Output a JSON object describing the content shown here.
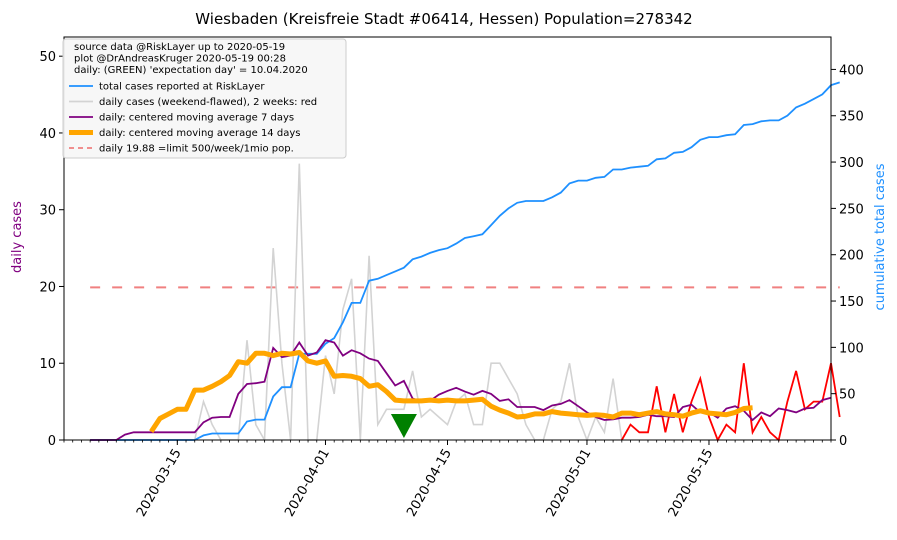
{
  "chart_data": {
    "type": "line",
    "title": "Wiesbaden (Kreisfreie Stadt #06414, Hessen) Population=278342",
    "ylabel_left": "daily cases",
    "ylabel_right": "cumulative total cases",
    "colors": {
      "total": "#1e90ff",
      "daily_raw": "#d3d3d3",
      "daily_recent": "#ff0000",
      "ma7": "#800080",
      "ma14": "#ffa500",
      "limit": "#f08080",
      "expectation_marker": "#008000",
      "ylabel_left": "#800080",
      "ylabel_right": "#1e90ff"
    },
    "xlim": [
      "2020-03-02",
      "2020-05-29"
    ],
    "ylim_left": [
      0,
      52.5
    ],
    "ylim_right": [
      0,
      435
    ],
    "x_ticks": [
      "2020-03-15",
      "2020-04-01",
      "2020-04-15",
      "2020-05-01",
      "2020-05-15"
    ],
    "y_ticks_left": [
      0,
      10,
      20,
      30,
      40,
      50
    ],
    "y_ticks_right": [
      0,
      50,
      100,
      150,
      200,
      250,
      300,
      350,
      400
    ],
    "legend": {
      "position": "top-left",
      "header": [
        "source data @RiskLayer up to 2020-05-19",
        "plot @DrAndreasKruger 2020-05-19 00:28",
        "daily: (GREEN) 'expectation day' = 10.04.2020"
      ],
      "entries": [
        "total cases reported at RiskLayer",
        "daily cases (weekend-flawed), 2 weeks: red",
        "daily: centered moving average 7 days",
        "daily: centered moving average 14 days",
        "daily 19.88 =limit 500/week/1mio pop."
      ]
    },
    "limit_value": 19.88,
    "expectation_day": "2020-04-10",
    "dates_start": "2020-03-05",
    "cumulative_total": [
      0,
      0,
      0,
      0,
      0,
      0,
      0,
      0,
      0,
      0,
      0,
      0,
      0,
      5,
      7,
      7,
      7,
      7,
      20,
      22,
      22,
      47,
      57,
      57,
      93,
      93,
      93,
      104,
      110,
      127,
      148,
      148,
      172,
      174,
      178,
      182,
      186,
      195,
      198,
      202,
      205,
      207,
      212,
      218,
      220,
      222,
      232,
      242,
      250,
      256,
      258,
      258,
      258,
      262,
      267,
      277,
      280,
      280,
      283,
      284,
      292,
      292,
      294,
      295,
      296,
      303,
      304,
      310,
      311,
      316,
      324,
      327,
      327,
      329,
      330,
      340,
      341,
      344,
      345,
      345,
      350,
      359,
      363,
      368,
      373,
      383,
      386
    ],
    "daily_cases": [
      0,
      0,
      0,
      0,
      0,
      0,
      0,
      0,
      0,
      0,
      0,
      0,
      0,
      5,
      2,
      0,
      0,
      0,
      13,
      2,
      0,
      25,
      10,
      0,
      36,
      0,
      0,
      11,
      6,
      17,
      21,
      0,
      24,
      2,
      4,
      4,
      4,
      9,
      3,
      4,
      3,
      2,
      5,
      6,
      2,
      2,
      10,
      10,
      8,
      6,
      2,
      0,
      0,
      4,
      5,
      10,
      3,
      0,
      3,
      1,
      8,
      0,
      2,
      1,
      1,
      7,
      1,
      6,
      1,
      5,
      8,
      3,
      0,
      2,
      1,
      10,
      1,
      3,
      1,
      0,
      5,
      9,
      4,
      5,
      5,
      10,
      3
    ],
    "daily_recent_start": "2020-05-05",
    "ma7": [
      0,
      0,
      0,
      0,
      0.7,
      1.0,
      1.0,
      1.0,
      1.0,
      1.0,
      1.0,
      1.0,
      1.0,
      2.3,
      2.9,
      3.0,
      3.0,
      6.0,
      7.3,
      7.4,
      7.6,
      12.0,
      10.8,
      11.0,
      12.7,
      11.0,
      11.4,
      13.0,
      12.7,
      11.0,
      11.7,
      11.3,
      10.6,
      10.3,
      8.7,
      7.1,
      7.7,
      5.4,
      5.0,
      5.1,
      5.9,
      6.4,
      6.8,
      6.3,
      5.9,
      6.4,
      6.0,
      5.1,
      5.3,
      4.3,
      4.3,
      4.3,
      3.9,
      4.5,
      4.7,
      5.2,
      4.4,
      3.6,
      3.0,
      2.6,
      2.7,
      2.9,
      2.9,
      3.0,
      3.3,
      3.1,
      3.1,
      3.0,
      4.3,
      4.6,
      3.6,
      3.6,
      2.9,
      4.1,
      4.4,
      3.8,
      2.6,
      3.6,
      3.1,
      4.1,
      3.9,
      3.6,
      4.1,
      4.2,
      5.2,
      5.5
    ],
    "ma7_start": "2020-03-05",
    "ma14_start": "2020-03-12",
    "ma14": [
      1.1,
      2.8,
      3.4,
      4.0,
      4.0,
      6.5,
      6.5,
      7.0,
      7.6,
      8.4,
      10.2,
      10.0,
      11.3,
      11.3,
      11.0,
      11.3,
      11.2,
      11.4,
      10.3,
      10.0,
      10.3,
      8.3,
      8.4,
      8.3,
      8.0,
      7.0,
      7.2,
      6.3,
      5.2,
      5.1,
      5.1,
      5.1,
      5.2,
      5.1,
      5.2,
      5.1,
      5.1,
      5.2,
      5.3,
      4.4,
      3.9,
      3.5,
      3.0,
      3.1,
      3.4,
      3.4,
      3.7,
      3.5,
      3.4,
      3.3,
      3.2,
      3.3,
      3.2,
      3.0,
      3.5,
      3.5,
      3.3,
      3.5,
      3.7,
      3.4,
      3.3,
      3.1,
      3.5,
      3.8,
      3.5,
      3.4,
      3.3,
      3.6,
      4.1,
      4.2
    ]
  }
}
